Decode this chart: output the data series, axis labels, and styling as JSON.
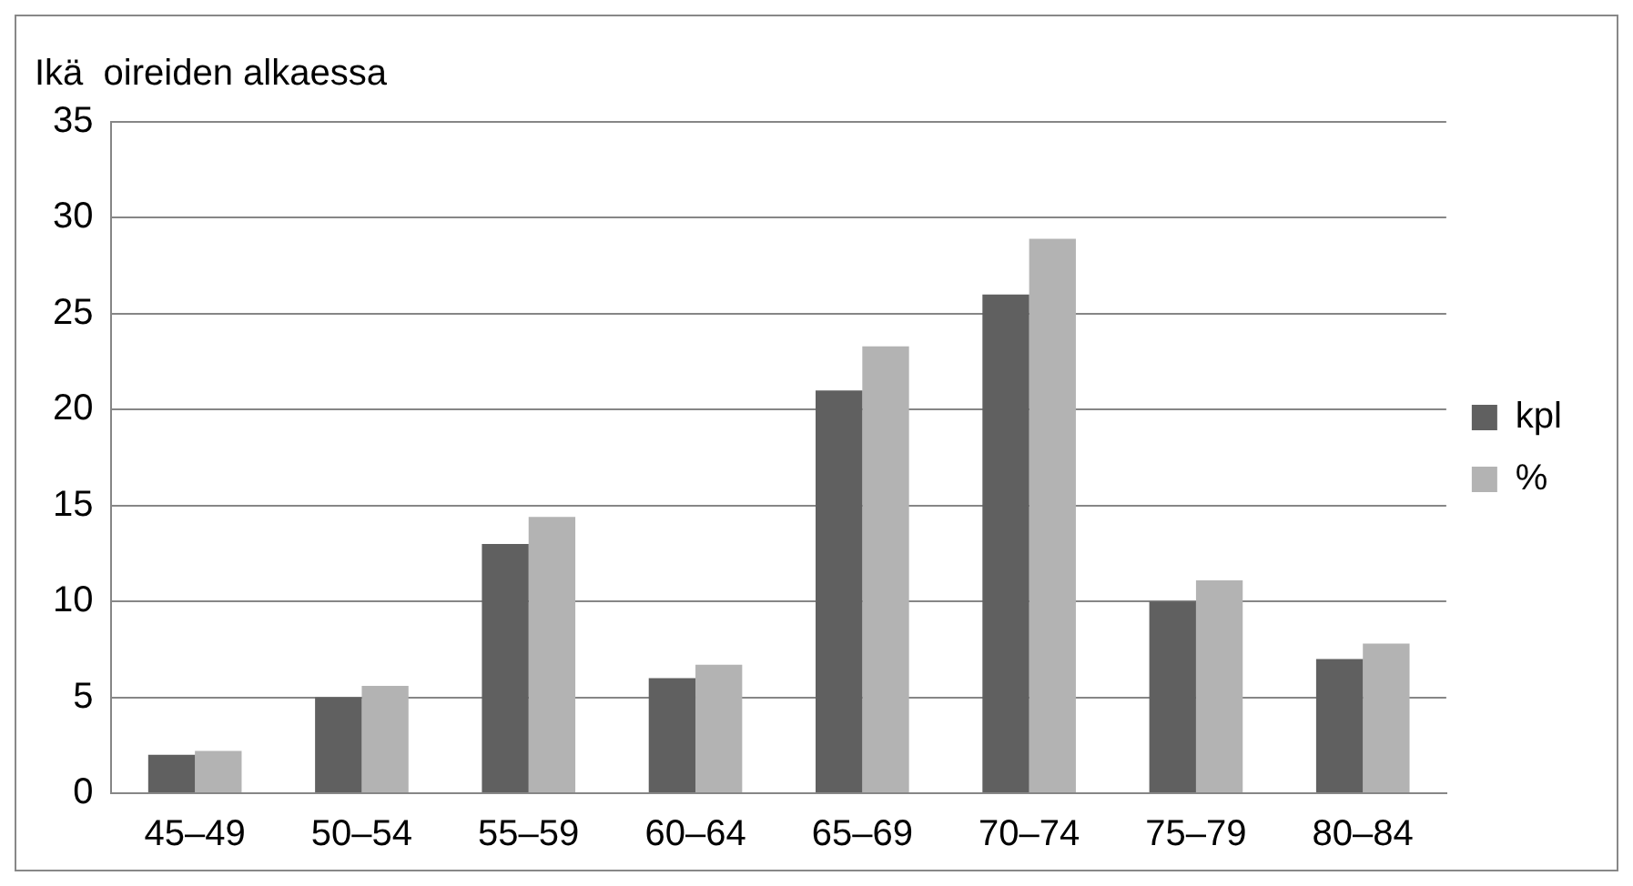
{
  "chart_data": {
    "type": "bar",
    "title": "Ikä  oireiden alkaessa",
    "categories": [
      "45–49",
      "50–54",
      "55–59",
      "60–64",
      "65–69",
      "70–74",
      "75–79",
      "80–84"
    ],
    "series": [
      {
        "name": "kpl",
        "color": "#606060",
        "values": [
          2,
          5,
          13,
          6,
          21,
          26,
          10,
          7
        ]
      },
      {
        "name": "%",
        "color": "#b3b3b3",
        "values": [
          2.2,
          5.6,
          14.4,
          6.7,
          23.3,
          28.9,
          11.1,
          7.8
        ]
      }
    ],
    "ylim": [
      0,
      35
    ],
    "yticks": [
      0,
      5,
      10,
      15,
      20,
      25,
      30,
      35
    ],
    "grid": "y",
    "legend": "right"
  }
}
